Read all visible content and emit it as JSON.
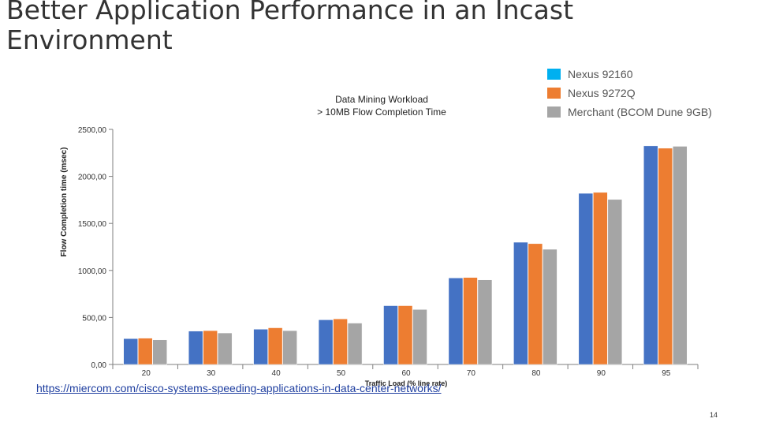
{
  "slide": {
    "title_line1": "Better Application Performance in an Incast",
    "title_line2": "Environment",
    "link_text": "https://miercom.com/cisco-systems-speeding-applications-in-data-center-networks/",
    "page_number": "14"
  },
  "chart_data": {
    "type": "bar",
    "title_line1": "Data Mining Workload",
    "title_line2": "> 10MB Flow Completion Time",
    "xlabel": "Traffic Load (% line rate)",
    "ylabel": "Flow Completion time (msec)",
    "categories": [
      "20",
      "30",
      "40",
      "50",
      "60",
      "70",
      "80",
      "90",
      "95"
    ],
    "ylim": [
      0,
      2500
    ],
    "yticks": [
      "0,00",
      "500,00",
      "1000,00",
      "1500,00",
      "2000,00",
      "2500,00"
    ],
    "ytick_values": [
      0,
      500,
      1000,
      1500,
      2000,
      2500
    ],
    "legend_position": "top-right",
    "grid": false,
    "series": [
      {
        "name": "Nexus 92160",
        "color": "#4472C4",
        "legend_color": "#00B0F0",
        "values": [
          275,
          355,
          375,
          475,
          625,
          920,
          1300,
          1820,
          2325
        ]
      },
      {
        "name": "Nexus 9272Q",
        "color": "#ED7D31",
        "legend_color": "#ED7D31",
        "values": [
          280,
          360,
          390,
          485,
          625,
          925,
          1285,
          1830,
          2300
        ]
      },
      {
        "name": "Merchant (BCOM Dune 9GB)",
        "color": "#A5A5A5",
        "legend_color": "#A5A5A5",
        "values": [
          262,
          335,
          360,
          440,
          585,
          900,
          1225,
          1755,
          2320
        ]
      }
    ]
  }
}
